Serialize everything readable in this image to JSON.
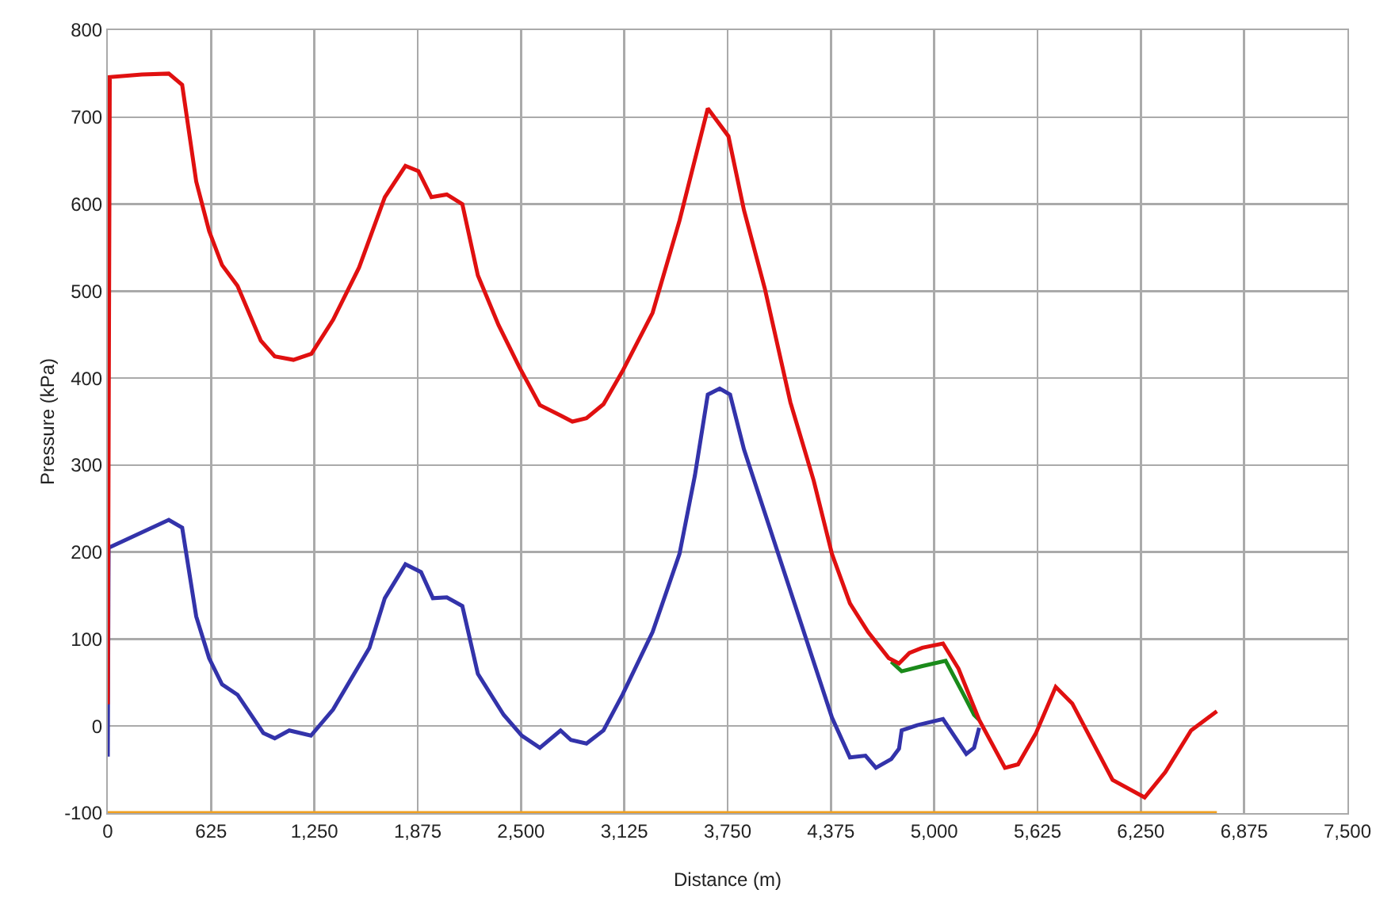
{
  "chart_data": {
    "type": "line",
    "xlabel": "Distance (m)",
    "ylabel": "Pressure (kPa)",
    "xlim": [
      0,
      7500
    ],
    "xticks": [
      0,
      625,
      {
        "value": 1250,
        "label": "1,250"
      },
      {
        "value": 1875,
        "label": "1,875"
      },
      {
        "value": 2500,
        "label": "2,500"
      },
      {
        "value": 3125,
        "label": "3,125"
      },
      {
        "value": 3750,
        "label": "3,750"
      },
      {
        "value": 4375,
        "label": "4,375"
      },
      {
        "value": 5000,
        "label": "5,000"
      },
      {
        "value": 5625,
        "label": "5,625"
      },
      {
        "value": 6250,
        "label": "6,250"
      },
      {
        "value": 6875,
        "label": "6,875"
      },
      {
        "value": 7500,
        "label": "7,500"
      }
    ],
    "ylim": [
      -100,
      800
    ],
    "yticks": [
      -100,
      0,
      100,
      200,
      300,
      400,
      500,
      600,
      700,
      800
    ],
    "grid": true,
    "marker": "none",
    "line_style": "solid",
    "series": [
      {
        "color": "#f0a020",
        "x": [
          0,
          6710
        ],
        "values": [
          -100,
          -100
        ]
      },
      {
        "color": "#3333aa",
        "x": [
          0,
          5,
          369,
          450,
          535,
          613,
          691,
          785,
          941,
          1010,
          1098,
          1229,
          1363,
          1583,
          1676,
          1801,
          1895,
          1967,
          2051,
          2145,
          2239,
          2395,
          2505,
          2614,
          2739,
          2802,
          2896,
          2999,
          3114,
          3296,
          3459,
          3552,
          3630,
          3702,
          3765,
          3849,
          4381,
          4490,
          4584,
          4647,
          4740,
          4787,
          4803,
          4897,
          5053,
          5194,
          5241,
          5272
        ],
        "values": [
          -35,
          205,
          237,
          228,
          126,
          78,
          48,
          36,
          -8,
          -14,
          -5,
          -11,
          19,
          90,
          147,
          186,
          177,
          147,
          148,
          138,
          60,
          13,
          -11,
          -25,
          -5,
          -16,
          -20,
          -5,
          36,
          108,
          198,
          288,
          381,
          388,
          381,
          318,
          10,
          -36,
          -34,
          -48,
          -38,
          -26,
          -5,
          1,
          8,
          -32,
          -25,
          -2
        ]
      },
      {
        "color": "#1a8a1a",
        "x": [
          4740,
          4803,
          4928,
          5069,
          5178,
          5241,
          5272
        ],
        "values": [
          74,
          63,
          69,
          75,
          36,
          13,
          7
        ]
      },
      {
        "color": "#e01010",
        "x": [
          0,
          12,
          206,
          369,
          450,
          535,
          613,
          691,
          785,
          926,
          1010,
          1123,
          1232,
          1363,
          1520,
          1676,
          1801,
          1879,
          1958,
          2051,
          2145,
          2239,
          2364,
          2489,
          2614,
          2739,
          2811,
          2896,
          2999,
          3114,
          3296,
          3459,
          3630,
          3755,
          3849,
          3975,
          4130,
          4271,
          4381,
          4490,
          4600,
          4725,
          4787,
          4850,
          4928,
          5053,
          5147,
          5272,
          5428,
          5507,
          5616,
          5735,
          5835,
          6079,
          6273,
          6398,
          6554,
          6710
        ],
        "values": [
          25,
          746,
          749,
          750,
          737,
          626,
          569,
          530,
          506,
          443,
          425,
          421,
          428,
          467,
          527,
          608,
          644,
          638,
          608,
          611,
          600,
          518,
          461,
          413,
          369,
          357,
          350,
          354,
          370,
          408,
          475,
          581,
          710,
          678,
          593,
          503,
          372,
          282,
          198,
          141,
          108,
          78,
          72,
          84,
          90,
          95,
          66,
          7,
          -48,
          -44,
          -8,
          45,
          26,
          -62,
          -82,
          -53,
          -5,
          17
        ]
      }
    ]
  }
}
